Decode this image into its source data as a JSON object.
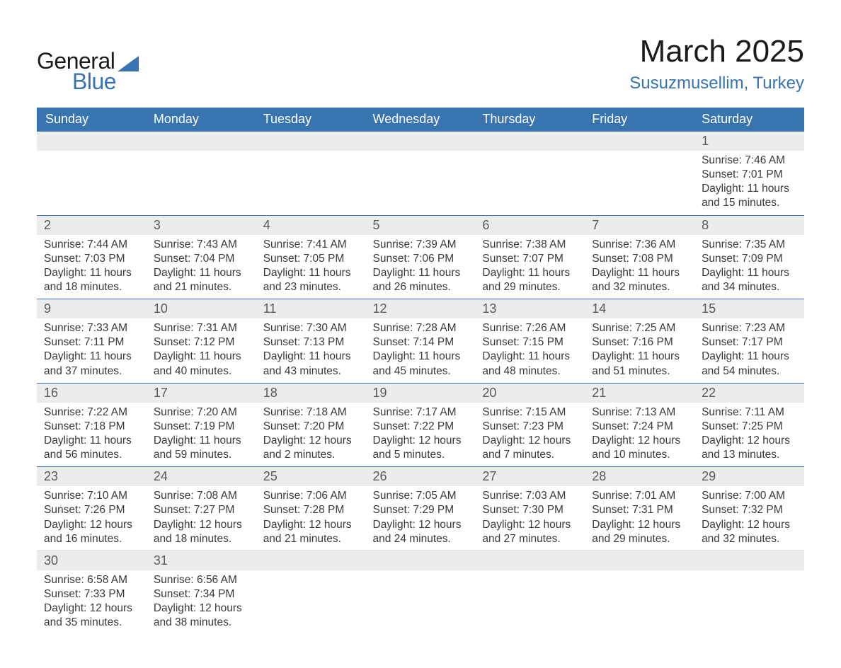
{
  "logo": {
    "text_general": "General",
    "text_blue": "Blue",
    "brand_color": "#3874b0",
    "text_color": "#1a1a1a"
  },
  "title": {
    "month": "March 2025",
    "location": "Susuzmusellim, Turkey",
    "month_fontsize": 44,
    "location_fontsize": 24,
    "location_color": "#3874b0"
  },
  "weekdays": [
    "Sunday",
    "Monday",
    "Tuesday",
    "Wednesday",
    "Thursday",
    "Friday",
    "Saturday"
  ],
  "colors": {
    "header_bg": "#3874b0",
    "header_text": "#ffffff",
    "daynum_bg": "#ececec",
    "daynum_text": "#5a5a5a",
    "body_text": "#3a3a3a",
    "row_border": "#3874b0",
    "background": "#ffffff"
  },
  "typography": {
    "weekday_fontsize": 18,
    "daynum_fontsize": 18,
    "content_fontsize": 15.5,
    "font_family": "Arial"
  },
  "calendar": {
    "type": "table",
    "leading_blanks": 6,
    "trailing_blanks": 5,
    "days": [
      {
        "num": "1",
        "sunrise": "7:46 AM",
        "sunset": "7:01 PM",
        "daylight": "11 hours and 15 minutes."
      },
      {
        "num": "2",
        "sunrise": "7:44 AM",
        "sunset": "7:03 PM",
        "daylight": "11 hours and 18 minutes."
      },
      {
        "num": "3",
        "sunrise": "7:43 AM",
        "sunset": "7:04 PM",
        "daylight": "11 hours and 21 minutes."
      },
      {
        "num": "4",
        "sunrise": "7:41 AM",
        "sunset": "7:05 PM",
        "daylight": "11 hours and 23 minutes."
      },
      {
        "num": "5",
        "sunrise": "7:39 AM",
        "sunset": "7:06 PM",
        "daylight": "11 hours and 26 minutes."
      },
      {
        "num": "6",
        "sunrise": "7:38 AM",
        "sunset": "7:07 PM",
        "daylight": "11 hours and 29 minutes."
      },
      {
        "num": "7",
        "sunrise": "7:36 AM",
        "sunset": "7:08 PM",
        "daylight": "11 hours and 32 minutes."
      },
      {
        "num": "8",
        "sunrise": "7:35 AM",
        "sunset": "7:09 PM",
        "daylight": "11 hours and 34 minutes."
      },
      {
        "num": "9",
        "sunrise": "7:33 AM",
        "sunset": "7:11 PM",
        "daylight": "11 hours and 37 minutes."
      },
      {
        "num": "10",
        "sunrise": "7:31 AM",
        "sunset": "7:12 PM",
        "daylight": "11 hours and 40 minutes."
      },
      {
        "num": "11",
        "sunrise": "7:30 AM",
        "sunset": "7:13 PM",
        "daylight": "11 hours and 43 minutes."
      },
      {
        "num": "12",
        "sunrise": "7:28 AM",
        "sunset": "7:14 PM",
        "daylight": "11 hours and 45 minutes."
      },
      {
        "num": "13",
        "sunrise": "7:26 AM",
        "sunset": "7:15 PM",
        "daylight": "11 hours and 48 minutes."
      },
      {
        "num": "14",
        "sunrise": "7:25 AM",
        "sunset": "7:16 PM",
        "daylight": "11 hours and 51 minutes."
      },
      {
        "num": "15",
        "sunrise": "7:23 AM",
        "sunset": "7:17 PM",
        "daylight": "11 hours and 54 minutes."
      },
      {
        "num": "16",
        "sunrise": "7:22 AM",
        "sunset": "7:18 PM",
        "daylight": "11 hours and 56 minutes."
      },
      {
        "num": "17",
        "sunrise": "7:20 AM",
        "sunset": "7:19 PM",
        "daylight": "11 hours and 59 minutes."
      },
      {
        "num": "18",
        "sunrise": "7:18 AM",
        "sunset": "7:20 PM",
        "daylight": "12 hours and 2 minutes."
      },
      {
        "num": "19",
        "sunrise": "7:17 AM",
        "sunset": "7:22 PM",
        "daylight": "12 hours and 5 minutes."
      },
      {
        "num": "20",
        "sunrise": "7:15 AM",
        "sunset": "7:23 PM",
        "daylight": "12 hours and 7 minutes."
      },
      {
        "num": "21",
        "sunrise": "7:13 AM",
        "sunset": "7:24 PM",
        "daylight": "12 hours and 10 minutes."
      },
      {
        "num": "22",
        "sunrise": "7:11 AM",
        "sunset": "7:25 PM",
        "daylight": "12 hours and 13 minutes."
      },
      {
        "num": "23",
        "sunrise": "7:10 AM",
        "sunset": "7:26 PM",
        "daylight": "12 hours and 16 minutes."
      },
      {
        "num": "24",
        "sunrise": "7:08 AM",
        "sunset": "7:27 PM",
        "daylight": "12 hours and 18 minutes."
      },
      {
        "num": "25",
        "sunrise": "7:06 AM",
        "sunset": "7:28 PM",
        "daylight": "12 hours and 21 minutes."
      },
      {
        "num": "26",
        "sunrise": "7:05 AM",
        "sunset": "7:29 PM",
        "daylight": "12 hours and 24 minutes."
      },
      {
        "num": "27",
        "sunrise": "7:03 AM",
        "sunset": "7:30 PM",
        "daylight": "12 hours and 27 minutes."
      },
      {
        "num": "28",
        "sunrise": "7:01 AM",
        "sunset": "7:31 PM",
        "daylight": "12 hours and 29 minutes."
      },
      {
        "num": "29",
        "sunrise": "7:00 AM",
        "sunset": "7:32 PM",
        "daylight": "12 hours and 32 minutes."
      },
      {
        "num": "30",
        "sunrise": "6:58 AM",
        "sunset": "7:33 PM",
        "daylight": "12 hours and 35 minutes."
      },
      {
        "num": "31",
        "sunrise": "6:56 AM",
        "sunset": "7:34 PM",
        "daylight": "12 hours and 38 minutes."
      }
    ],
    "labels": {
      "sunrise": "Sunrise:",
      "sunset": "Sunset:",
      "daylight": "Daylight:"
    }
  }
}
